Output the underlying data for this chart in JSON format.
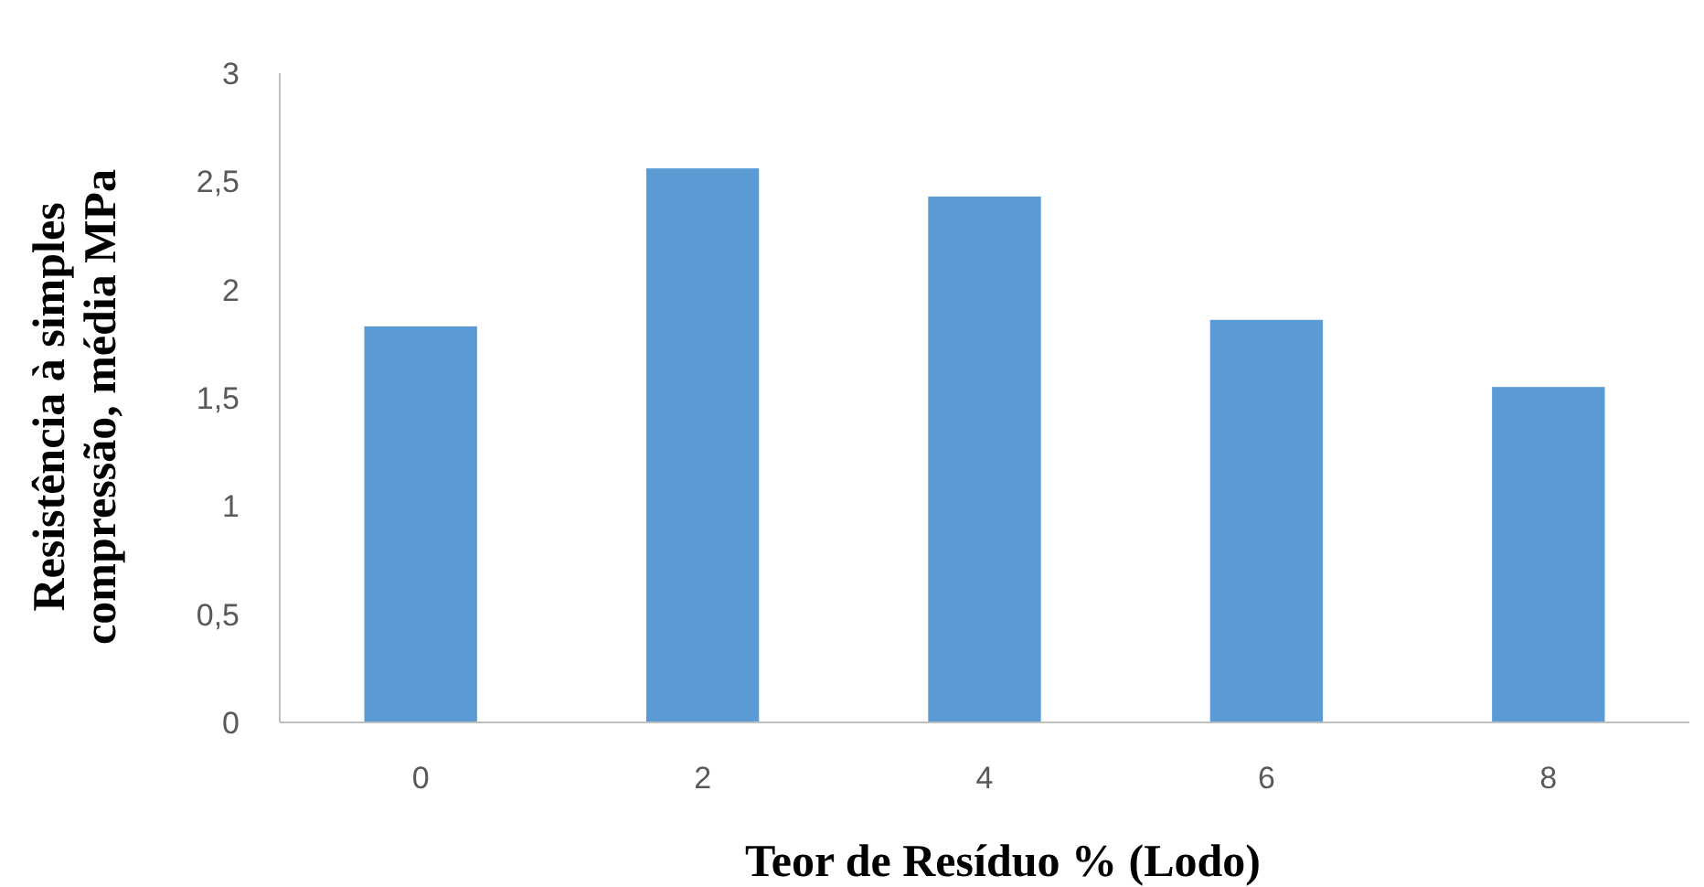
{
  "chart_data": {
    "type": "bar",
    "xlabel": "Teor de Resíduo % (Lodo)",
    "ylabel": "Resistência à simples\ncompressão, média MPa",
    "categories": [
      "0",
      "2",
      "4",
      "6",
      "8"
    ],
    "values": [
      1.83,
      2.56,
      2.43,
      1.86,
      1.55
    ],
    "color": "#5b9bd5",
    "ylim": [
      0,
      3
    ],
    "yticks": [
      0,
      {
        "value": 0.5,
        "label": "0,5"
      },
      1,
      {
        "value": 1.5,
        "label": "1,5"
      },
      2,
      {
        "value": 2.5,
        "label": "2,5"
      },
      3
    ],
    "grid": false
  }
}
